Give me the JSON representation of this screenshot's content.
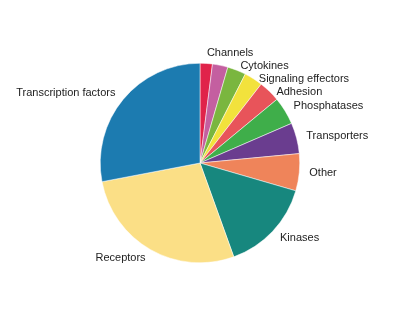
{
  "chart_data": {
    "type": "pie",
    "categories": [
      "Channels",
      null,
      "Cytokines",
      "Signaling effectors",
      "Adhesion",
      "Phosphatases",
      "Transporters",
      "Other",
      "Kinases",
      "Receptors",
      "Transcription factors"
    ],
    "values": [
      2,
      2.5,
      3,
      3,
      3.5,
      4.5,
      5,
      6,
      15,
      27.5,
      28
    ],
    "colors": [
      "#e0234a",
      "#c45fa0",
      "#7ab63f",
      "#f2e23c",
      "#e8545a",
      "#3fae4a",
      "#6a3d8f",
      "#ef845a",
      "#17877e",
      "#fbdf86",
      "#1c7bb0"
    ]
  }
}
